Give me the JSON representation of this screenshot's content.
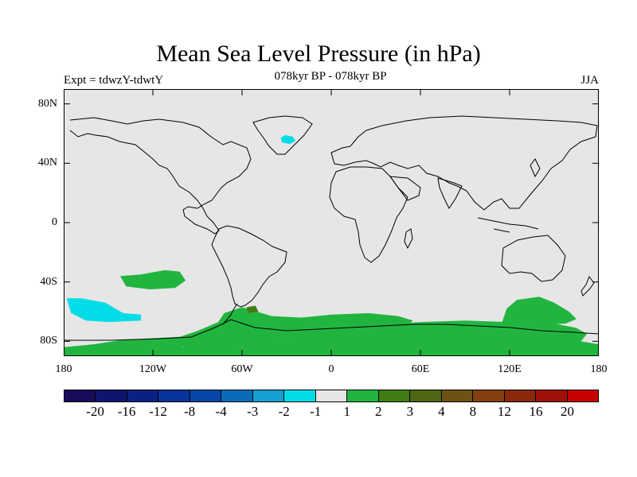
{
  "title": "Mean Sea Level Pressure (in hPa)",
  "left_label": "Expt = tdwzY-tdwtY",
  "subtitle": "078kyr BP - 078kyr BP",
  "season": "JJA",
  "map": {
    "projection": "cylindrical equidistant",
    "lon_range": [
      -180,
      180
    ],
    "lat_range": [
      -90,
      90
    ],
    "background_color": "#e6e6e6",
    "coastline_color": "#000000",
    "lat_ticks": [
      {
        "value": 80,
        "label": "80N"
      },
      {
        "value": 40,
        "label": "40N"
      },
      {
        "value": 0,
        "label": "0"
      },
      {
        "value": -40,
        "label": "40S"
      },
      {
        "value": -80,
        "label": "80S"
      }
    ],
    "lon_ticks": [
      {
        "value": -180,
        "label": "180"
      },
      {
        "value": -120,
        "label": "120W"
      },
      {
        "value": -60,
        "label": "60W"
      },
      {
        "value": 0,
        "label": "0"
      },
      {
        "value": 60,
        "label": "60E"
      },
      {
        "value": 120,
        "label": "120E"
      },
      {
        "value": 180,
        "label": "180"
      }
    ],
    "regions": [
      {
        "name": "north-atlantic-cyan",
        "color": "#00dde6",
        "points": [
          [
            -34,
            57
          ],
          [
            -31,
            59
          ],
          [
            -26,
            58
          ],
          [
            -24,
            55
          ],
          [
            -28,
            53
          ],
          [
            -33,
            54
          ]
        ]
      },
      {
        "name": "south-pacific-green",
        "color": "#21b540",
        "points": [
          [
            -142,
            -36
          ],
          [
            -128,
            -35
          ],
          [
            -112,
            -32
          ],
          [
            -102,
            -33
          ],
          [
            -98,
            -39
          ],
          [
            -105,
            -44
          ],
          [
            -122,
            -45
          ],
          [
            -138,
            -43
          ]
        ]
      },
      {
        "name": "south-pacific-cyan",
        "color": "#00dde6",
        "points": [
          [
            -178,
            -51
          ],
          [
            -168,
            -51
          ],
          [
            -152,
            -54
          ],
          [
            -140,
            -61
          ],
          [
            -128,
            -62
          ],
          [
            -128,
            -66
          ],
          [
            -150,
            -67
          ],
          [
            -165,
            -66
          ],
          [
            -175,
            -61
          ]
        ]
      },
      {
        "name": "southern-ocean-green",
        "color": "#21b540",
        "points": [
          [
            -102,
            -77
          ],
          [
            -90,
            -73
          ],
          [
            -76,
            -67
          ],
          [
            -72,
            -61
          ],
          [
            -60,
            -57
          ],
          [
            -40,
            -63
          ],
          [
            -20,
            -64
          ],
          [
            0,
            -62
          ],
          [
            25,
            -61
          ],
          [
            45,
            -63
          ],
          [
            55,
            -66
          ],
          [
            48,
            -72
          ],
          [
            30,
            -70
          ],
          [
            10,
            -71
          ],
          [
            -10,
            -74
          ],
          [
            -30,
            -78
          ],
          [
            -50,
            -82
          ],
          [
            -60,
            -83
          ],
          [
            -72,
            -84
          ],
          [
            -98,
            -85
          ],
          [
            -102,
            -82
          ]
        ]
      },
      {
        "name": "southern-ocean-green-east",
        "color": "#21b540",
        "points": [
          [
            115,
            -67
          ],
          [
            118,
            -58
          ],
          [
            125,
            -52
          ],
          [
            140,
            -50
          ],
          [
            150,
            -54
          ],
          [
            160,
            -60
          ],
          [
            165,
            -65
          ],
          [
            158,
            -68
          ],
          [
            140,
            -69
          ],
          [
            122,
            -69
          ]
        ]
      },
      {
        "name": "antarctica-green",
        "color": "#21b540",
        "points": [
          [
            -180,
            -84
          ],
          [
            -160,
            -82
          ],
          [
            -140,
            -79
          ],
          [
            -102,
            -77
          ],
          [
            -100,
            -84
          ],
          [
            -60,
            -83
          ],
          [
            -30,
            -78
          ],
          [
            0,
            -71
          ],
          [
            30,
            -69
          ],
          [
            60,
            -67
          ],
          [
            90,
            -66
          ],
          [
            120,
            -67
          ],
          [
            150,
            -68
          ],
          [
            165,
            -71
          ],
          [
            172,
            -75
          ],
          [
            168,
            -80
          ],
          [
            180,
            -82
          ],
          [
            180,
            -90
          ],
          [
            -180,
            -90
          ]
        ]
      },
      {
        "name": "weddell-olive-spot",
        "color": "#3f7d12",
        "points": [
          [
            -57,
            -57
          ],
          [
            -51,
            -56
          ],
          [
            -49,
            -60
          ],
          [
            -56,
            -61
          ]
        ]
      }
    ]
  },
  "colorbar": {
    "colors": [
      "#1a0a5c",
      "#0f156e",
      "#0a2184",
      "#08339a",
      "#0547a8",
      "#0a6cb8",
      "#14a0d0",
      "#00dde6",
      "#e6e6e6",
      "#21b540",
      "#3f7d12",
      "#4f6612",
      "#6e5212",
      "#84400f",
      "#8c280c",
      "#a01008",
      "#c80000"
    ],
    "labels": [
      "-20",
      "-16",
      "-12",
      "-8",
      "-4",
      "-3",
      "-2",
      "-1",
      "1",
      "2",
      "3",
      "4",
      "8",
      "12",
      "16",
      "20"
    ]
  }
}
